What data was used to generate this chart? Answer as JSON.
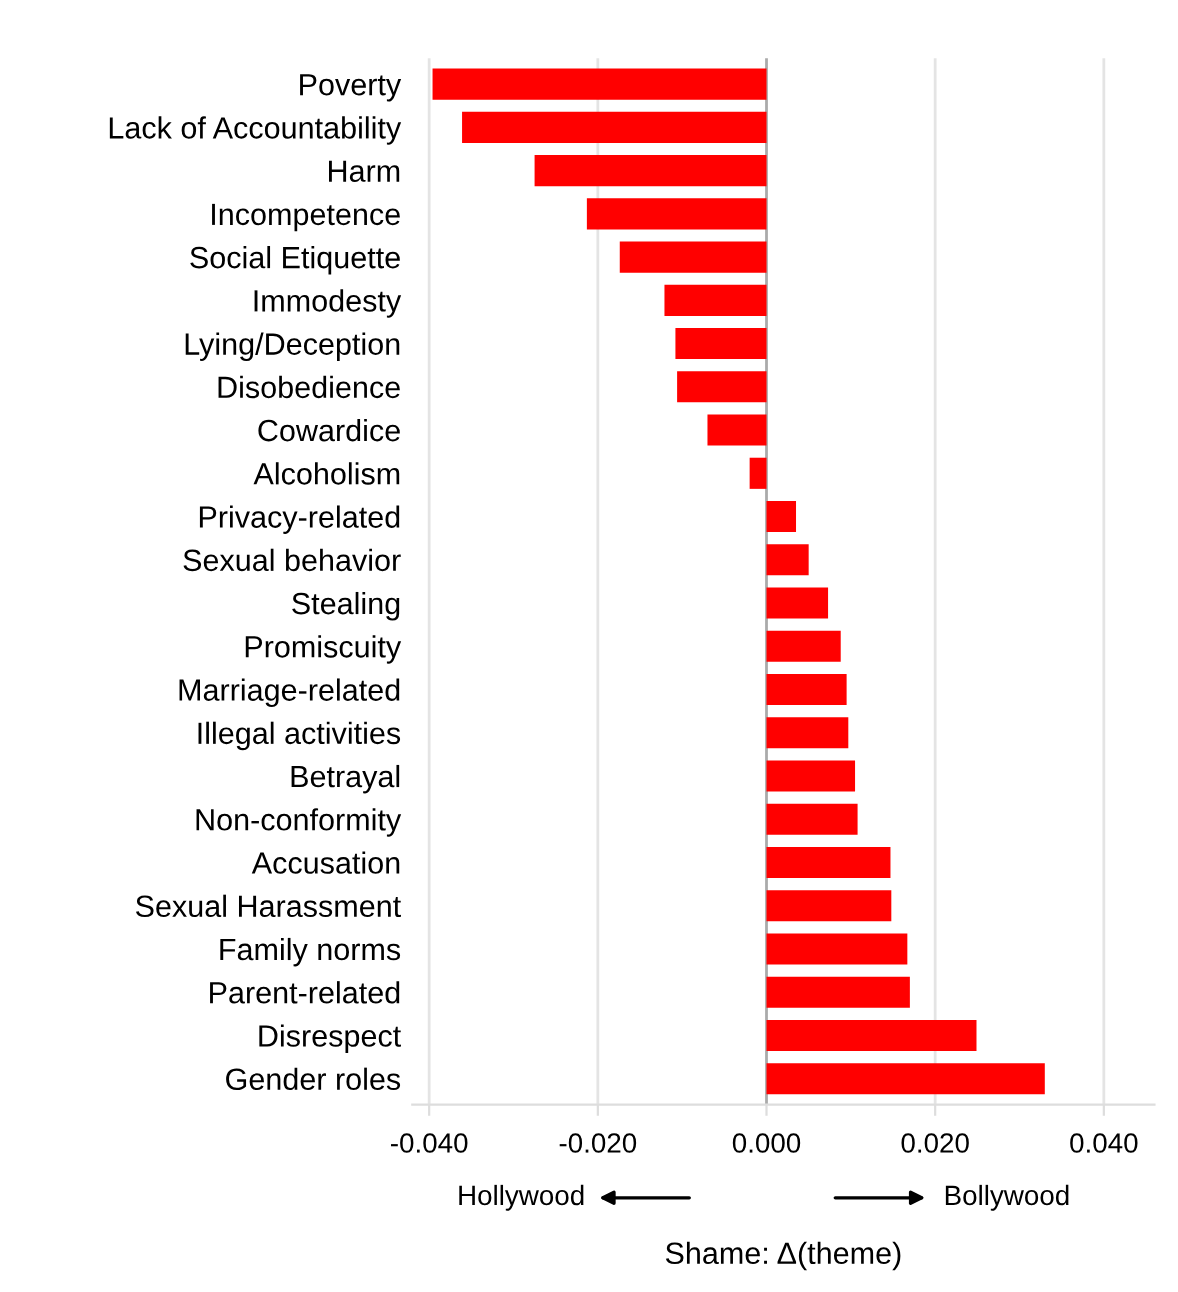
{
  "chart_data": {
    "type": "bar",
    "orientation": "horizontal",
    "xlabel": "Shame: Δ(theme)",
    "categories": [
      "Poverty",
      "Lack of Accountability",
      "Harm",
      "Incompetence",
      "Social Etiquette",
      "Immodesty",
      "Lying/Deception",
      "Disobedience",
      "Cowardice",
      "Alcoholism",
      "Privacy-related",
      "Sexual behavior",
      "Stealing",
      "Promiscuity",
      "Marriage-related",
      "Illegal activities",
      "Betrayal",
      "Non-conformity",
      "Accusation",
      "Sexual Harassment",
      "Family norms",
      "Parent-related",
      "Disrespect",
      "Gender roles"
    ],
    "values": [
      -0.0396,
      -0.0361,
      -0.0275,
      -0.0213,
      -0.0174,
      -0.0121,
      -0.0108,
      -0.0106,
      -0.007,
      -0.002,
      0.0035,
      0.005,
      0.0073,
      0.0088,
      0.0095,
      0.0097,
      0.0105,
      0.0108,
      0.0147,
      0.0148,
      0.0167,
      0.017,
      0.0249,
      0.033
    ],
    "color": "#ff0000",
    "xlim": [
      -0.042,
      0.046
    ],
    "xticks": [
      {
        "value": -0.04,
        "label": "-0.040"
      },
      {
        "value": -0.02,
        "label": "-0.020"
      },
      {
        "value": 0,
        "label": "0.000"
      },
      {
        "value": 0.02,
        "label": "0.020"
      },
      {
        "value": 0.04,
        "label": "0.040"
      }
    ],
    "grid": "x",
    "annotations": [
      "Hollywood",
      "Bollywood"
    ]
  }
}
